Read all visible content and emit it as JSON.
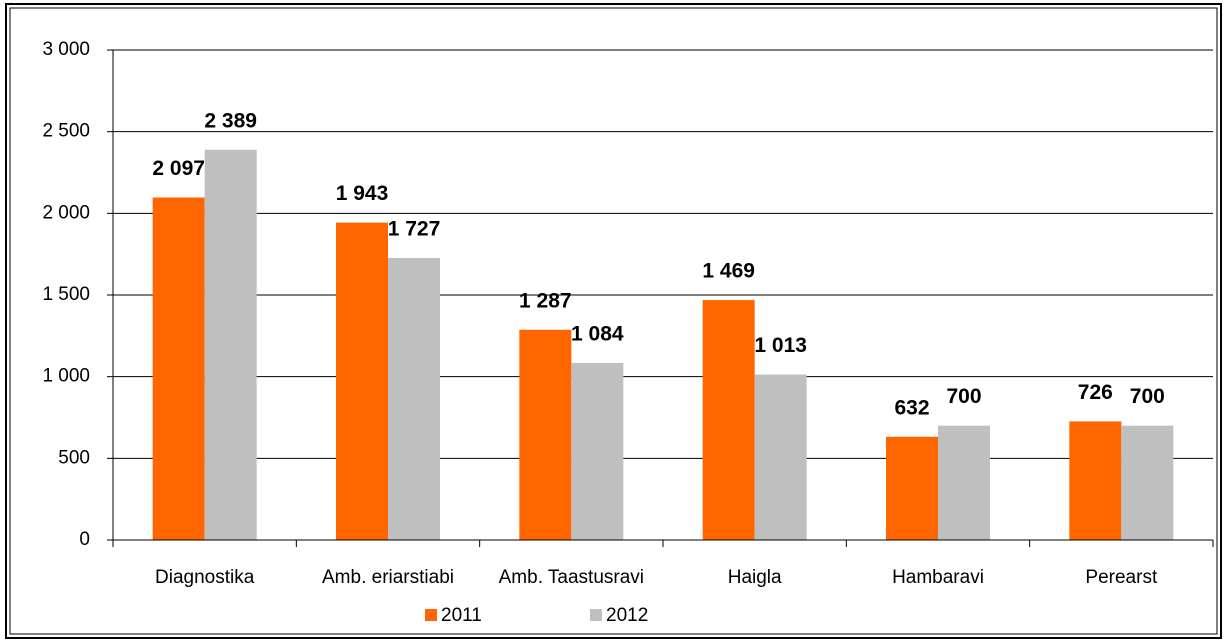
{
  "chart_data": {
    "type": "bar",
    "categories": [
      "Diagnostika",
      "Amb. eriarstiabi",
      "Amb. Taastusravi",
      "Haigla",
      "Hambaravi",
      "Perearst"
    ],
    "series": [
      {
        "name": "2011",
        "color": "#ff6600",
        "values": [
          2097,
          1943,
          1287,
          1469,
          632,
          726
        ],
        "value_labels": [
          "2 097",
          "1 943",
          "1 287",
          "1 469",
          "632",
          "726"
        ]
      },
      {
        "name": "2012",
        "color": "#bfbfbf",
        "values": [
          2389,
          1727,
          1084,
          1013,
          700,
          700
        ],
        "value_labels": [
          "2 389",
          "1 727",
          "1 084",
          "1 013",
          "700",
          "700"
        ]
      }
    ],
    "ylim": [
      0,
      3000
    ],
    "yticks": [
      0,
      500,
      {
        "value": 1000,
        "label": "1 000"
      },
      {
        "value": 1500,
        "label": "1 500"
      },
      {
        "value": 2000,
        "label": "2 000"
      },
      {
        "value": 2500,
        "label": "2 500"
      },
      {
        "value": 3000,
        "label": "3 000"
      }
    ],
    "grid": true,
    "legend": "bottom"
  }
}
